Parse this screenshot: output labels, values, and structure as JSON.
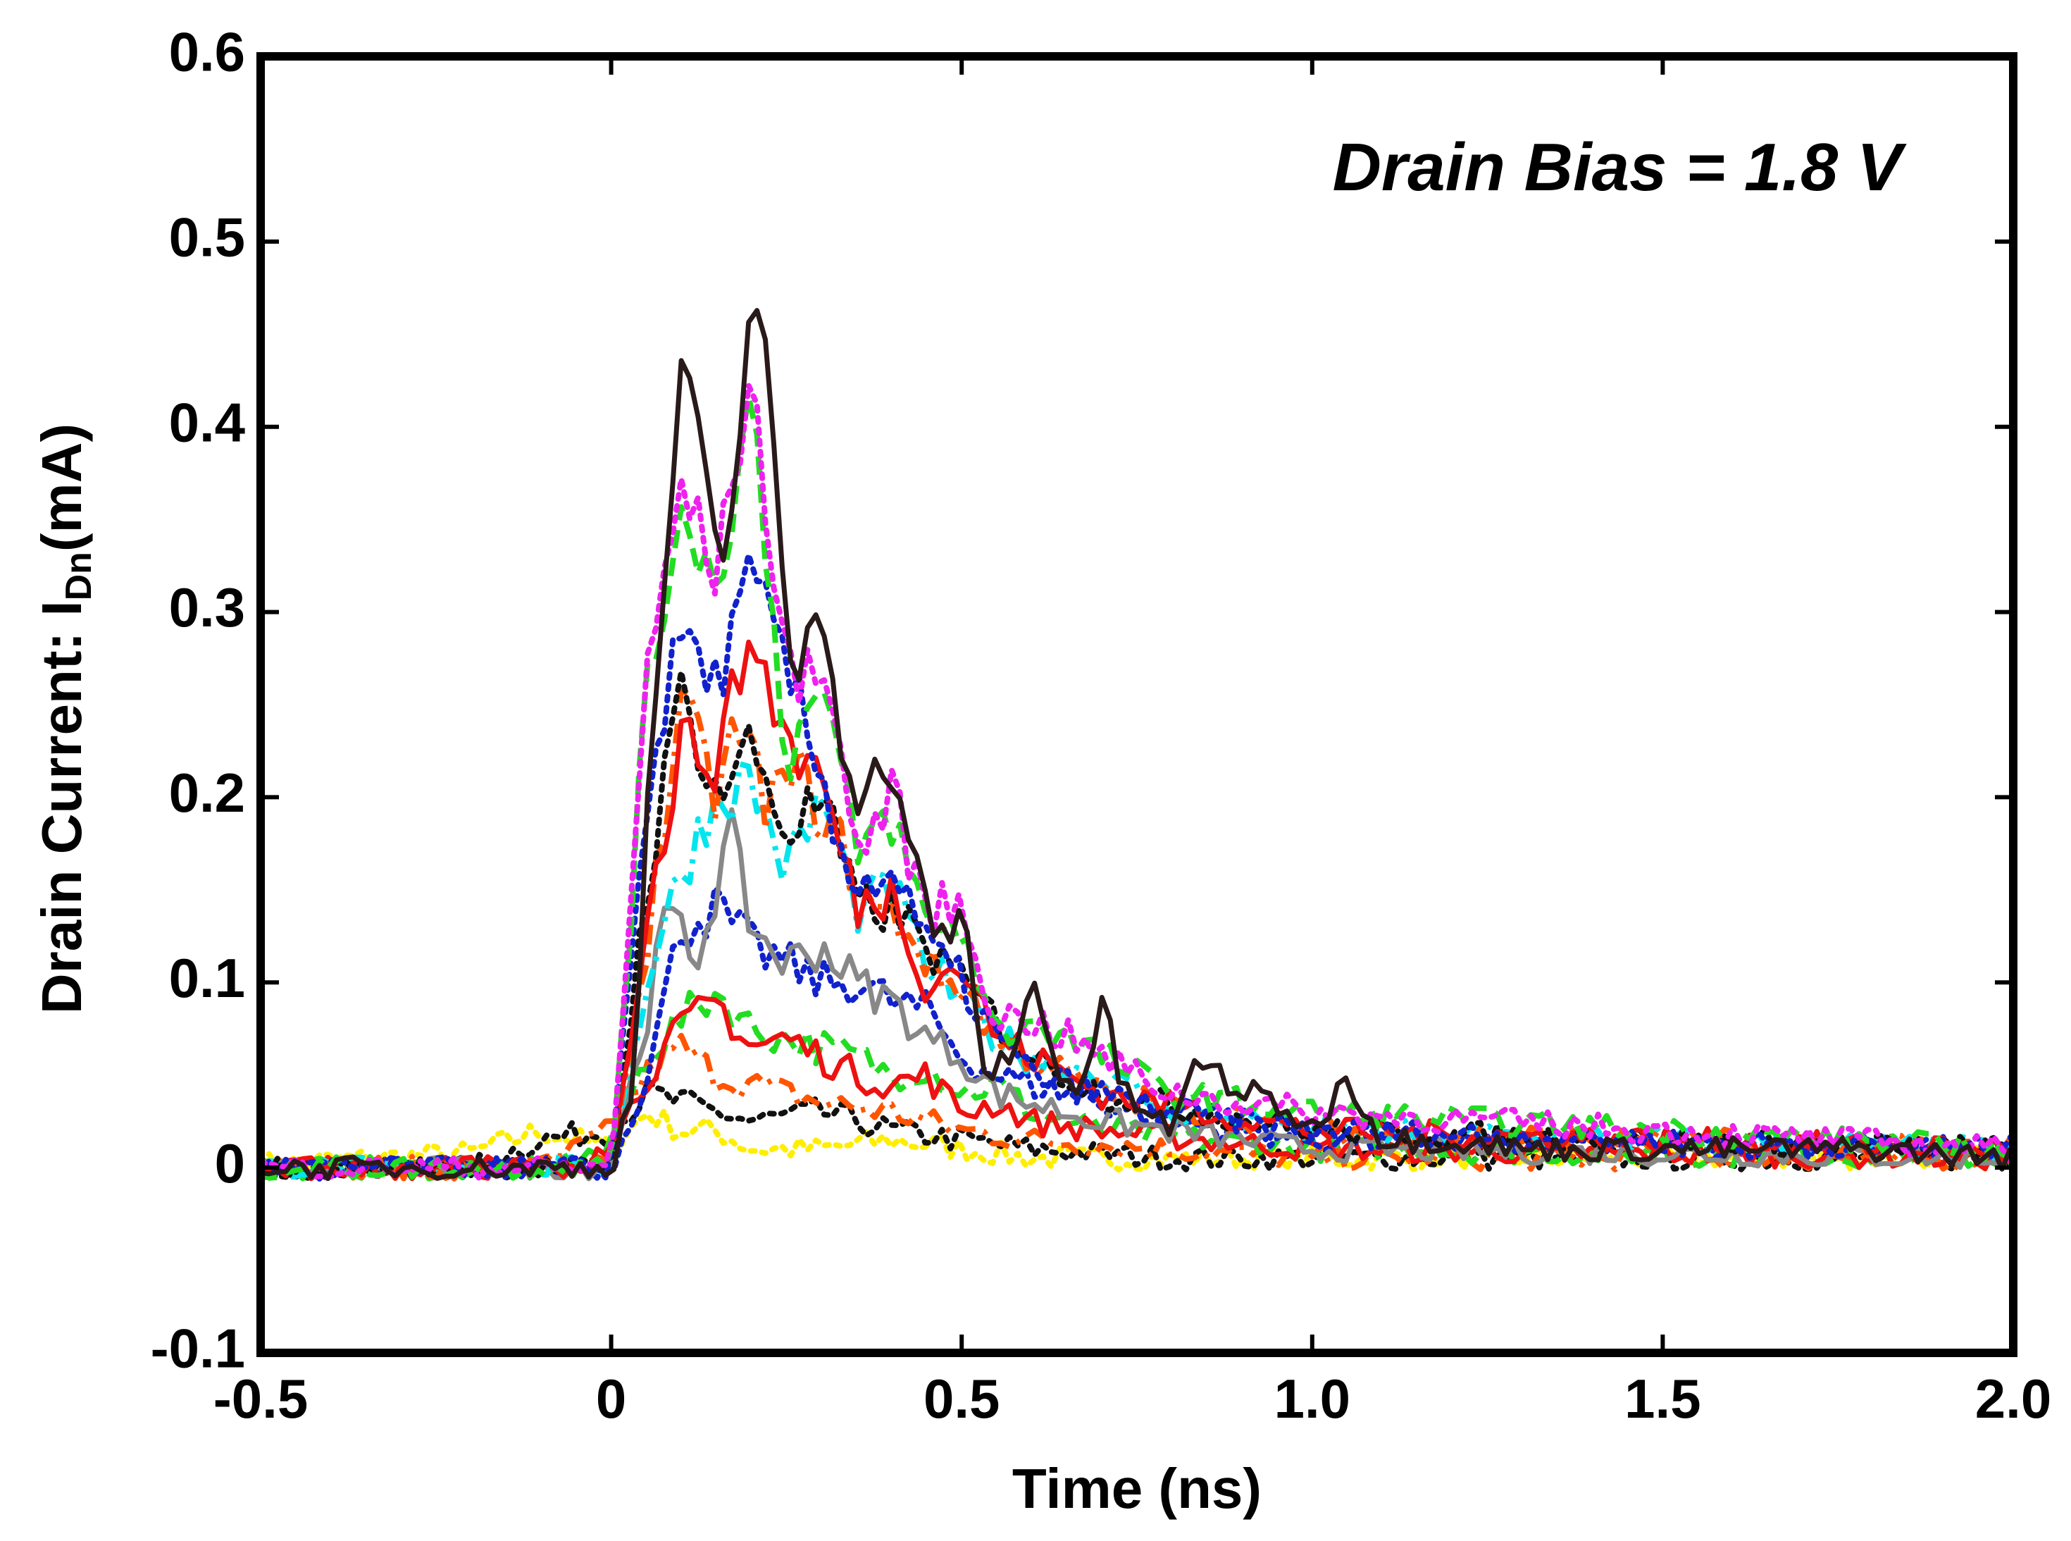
{
  "chart_data": {
    "type": "line",
    "title": "",
    "xlabel": "Time (ns)",
    "ylabel": {
      "prefix": "Drain Current: I",
      "subscript": "Dn",
      "suffix": "(mA)"
    },
    "xlim": [
      -0.5,
      2.0
    ],
    "ylim": [
      -0.1,
      0.6
    ],
    "x_ticks": [
      -0.5,
      0,
      0.5,
      1.0,
      1.5,
      2.0
    ],
    "x_tick_labels": [
      "-0.5",
      "0",
      "0.5",
      "1.0",
      "1.5",
      "2.0"
    ],
    "y_ticks": [
      -0.1,
      0,
      0.1,
      0.2,
      0.3,
      0.4,
      0.5,
      0.6
    ],
    "y_tick_labels": [
      "-0.1",
      "0",
      "0.1",
      "0.2",
      "0.3",
      "0.4",
      "0.5",
      "0.6"
    ],
    "grid": false,
    "legend": "none",
    "annotation": "Drain Bias = 1.8 V",
    "series": [
      {
        "name": "trace-yellow-dotted",
        "color": "#ffee00",
        "dash": "dotted",
        "points": [
          [
            -0.5,
            0.002
          ],
          [
            -0.2,
            0.008
          ],
          [
            -0.1,
            0.02
          ],
          [
            0.0,
            0.01
          ],
          [
            0.05,
            0.03
          ],
          [
            0.1,
            0.02
          ],
          [
            0.15,
            0.02
          ],
          [
            0.2,
            0.01
          ],
          [
            0.3,
            0.01
          ],
          [
            0.4,
            0.015
          ],
          [
            0.5,
            0.01
          ],
          [
            0.6,
            0.005
          ],
          [
            1.0,
            0.005
          ],
          [
            2.0,
            0.005
          ]
        ]
      },
      {
        "name": "trace-black-dotted",
        "color": "#111111",
        "dash": "dotted",
        "points": [
          [
            -0.5,
            0.0
          ],
          [
            -0.2,
            0.0
          ],
          [
            -0.1,
            0.015
          ],
          [
            0.0,
            0.02
          ],
          [
            0.05,
            0.04
          ],
          [
            0.1,
            0.035
          ],
          [
            0.15,
            0.03
          ],
          [
            0.2,
            0.025
          ],
          [
            0.3,
            0.03
          ],
          [
            0.4,
            0.02
          ],
          [
            0.5,
            0.015
          ],
          [
            0.6,
            0.01
          ],
          [
            0.8,
            0.005
          ],
          [
            1.0,
            0.005
          ],
          [
            2.0,
            0.005
          ]
        ]
      },
      {
        "name": "trace-orange-dashdot-low",
        "color": "#ff5500",
        "dash": "dashdot",
        "points": [
          [
            -0.5,
            0.0
          ],
          [
            -0.1,
            0.0
          ],
          [
            0.0,
            0.02
          ],
          [
            0.05,
            0.05
          ],
          [
            0.1,
            0.065
          ],
          [
            0.15,
            0.05
          ],
          [
            0.2,
            0.045
          ],
          [
            0.3,
            0.035
          ],
          [
            0.4,
            0.03
          ],
          [
            0.5,
            0.02
          ],
          [
            0.6,
            0.015
          ],
          [
            0.8,
            0.01
          ],
          [
            1.0,
            0.005
          ],
          [
            2.0,
            0.005
          ]
        ]
      },
      {
        "name": "trace-green-dashed-low",
        "color": "#22dd22",
        "dash": "dashed",
        "points": [
          [
            -0.5,
            0.0
          ],
          [
            -0.1,
            0.0
          ],
          [
            0.0,
            0.01
          ],
          [
            0.05,
            0.06
          ],
          [
            0.1,
            0.08
          ],
          [
            0.15,
            0.095
          ],
          [
            0.2,
            0.075
          ],
          [
            0.25,
            0.07
          ],
          [
            0.3,
            0.065
          ],
          [
            0.35,
            0.06
          ],
          [
            0.4,
            0.05
          ],
          [
            0.45,
            0.055
          ],
          [
            0.5,
            0.04
          ],
          [
            0.55,
            0.045
          ],
          [
            0.6,
            0.03
          ],
          [
            0.7,
            0.02
          ],
          [
            1.0,
            0.01
          ],
          [
            2.0,
            0.005
          ]
        ]
      },
      {
        "name": "trace-red-solid-low",
        "color": "#ee1111",
        "dash": "solid",
        "points": [
          [
            -0.5,
            0.0
          ],
          [
            -0.05,
            0.0
          ],
          [
            0.0,
            0.01
          ],
          [
            0.05,
            0.05
          ],
          [
            0.1,
            0.075
          ],
          [
            0.15,
            0.09
          ],
          [
            0.2,
            0.065
          ],
          [
            0.25,
            0.07
          ],
          [
            0.3,
            0.06
          ],
          [
            0.35,
            0.05
          ],
          [
            0.4,
            0.045
          ],
          [
            0.45,
            0.05
          ],
          [
            0.5,
            0.03
          ],
          [
            0.55,
            0.035
          ],
          [
            0.6,
            0.025
          ],
          [
            0.7,
            0.02
          ],
          [
            1.0,
            0.01
          ],
          [
            2.0,
            0.005
          ]
        ]
      },
      {
        "name": "trace-blue-dotted-low",
        "color": "#1122cc",
        "dash": "dotted",
        "points": [
          [
            -0.5,
            0.0
          ],
          [
            0.0,
            0.0
          ],
          [
            0.05,
            0.05
          ],
          [
            0.1,
            0.13
          ],
          [
            0.15,
            0.14
          ],
          [
            0.2,
            0.12
          ],
          [
            0.25,
            0.11
          ],
          [
            0.3,
            0.1
          ],
          [
            0.35,
            0.1
          ],
          [
            0.4,
            0.09
          ],
          [
            0.45,
            0.085
          ],
          [
            0.5,
            0.06
          ],
          [
            0.55,
            0.05
          ],
          [
            0.6,
            0.045
          ],
          [
            0.7,
            0.035
          ],
          [
            0.8,
            0.025
          ],
          [
            1.0,
            0.015
          ],
          [
            2.0,
            0.01
          ]
        ]
      },
      {
        "name": "trace-gray-solid",
        "color": "#888888",
        "dash": "solid",
        "points": [
          [
            -0.5,
            0.0
          ],
          [
            0.0,
            0.0
          ],
          [
            0.05,
            0.08
          ],
          [
            0.08,
            0.14
          ],
          [
            0.12,
            0.11
          ],
          [
            0.17,
            0.18
          ],
          [
            0.2,
            0.13
          ],
          [
            0.25,
            0.11
          ],
          [
            0.3,
            0.12
          ],
          [
            0.35,
            0.1
          ],
          [
            0.4,
            0.09
          ],
          [
            0.45,
            0.07
          ],
          [
            0.5,
            0.06
          ],
          [
            0.55,
            0.04
          ],
          [
            0.6,
            0.035
          ],
          [
            0.7,
            0.025
          ],
          [
            0.8,
            0.02
          ],
          [
            1.0,
            0.01
          ],
          [
            2.0,
            0.005
          ]
        ]
      },
      {
        "name": "trace-cyan-dashdot",
        "color": "#00e5ee",
        "dash": "dashdot",
        "points": [
          [
            -0.5,
            0.0
          ],
          [
            0.0,
            0.0
          ],
          [
            0.05,
            0.1
          ],
          [
            0.1,
            0.16
          ],
          [
            0.15,
            0.2
          ],
          [
            0.2,
            0.21
          ],
          [
            0.25,
            0.16
          ],
          [
            0.3,
            0.2
          ],
          [
            0.35,
            0.14
          ],
          [
            0.4,
            0.15
          ],
          [
            0.45,
            0.11
          ],
          [
            0.5,
            0.09
          ],
          [
            0.55,
            0.07
          ],
          [
            0.6,
            0.06
          ],
          [
            0.7,
            0.05
          ],
          [
            0.8,
            0.03
          ],
          [
            1.0,
            0.02
          ],
          [
            2.0,
            0.01
          ]
        ]
      },
      {
        "name": "trace-orange-dashdot-mid",
        "color": "#ff5500",
        "dash": "dashdot",
        "points": [
          [
            -0.5,
            0.0
          ],
          [
            0.0,
            0.0
          ],
          [
            0.05,
            0.12
          ],
          [
            0.1,
            0.25
          ],
          [
            0.15,
            0.2
          ],
          [
            0.18,
            0.24
          ],
          [
            0.22,
            0.2
          ],
          [
            0.27,
            0.21
          ],
          [
            0.32,
            0.18
          ],
          [
            0.37,
            0.14
          ],
          [
            0.42,
            0.13
          ],
          [
            0.47,
            0.1
          ],
          [
            0.5,
            0.1
          ],
          [
            0.55,
            0.07
          ],
          [
            0.6,
            0.06
          ],
          [
            0.7,
            0.04
          ],
          [
            1.0,
            0.02
          ],
          [
            2.0,
            0.01
          ]
        ]
      },
      {
        "name": "trace-black-dotted-mid",
        "color": "#111111",
        "dash": "dotted",
        "points": [
          [
            -0.5,
            0.0
          ],
          [
            0.0,
            0.0
          ],
          [
            0.05,
            0.15
          ],
          [
            0.1,
            0.26
          ],
          [
            0.15,
            0.2
          ],
          [
            0.2,
            0.23
          ],
          [
            0.25,
            0.18
          ],
          [
            0.3,
            0.2
          ],
          [
            0.35,
            0.14
          ],
          [
            0.4,
            0.14
          ],
          [
            0.45,
            0.12
          ],
          [
            0.5,
            0.1
          ],
          [
            0.6,
            0.06
          ],
          [
            0.7,
            0.04
          ],
          [
            1.0,
            0.02
          ],
          [
            2.0,
            0.01
          ]
        ]
      },
      {
        "name": "trace-red-solid-mid",
        "color": "#ee1111",
        "dash": "solid",
        "points": [
          [
            -0.5,
            0.0
          ],
          [
            -0.05,
            0.0
          ],
          [
            0.0,
            0.01
          ],
          [
            0.05,
            0.13
          ],
          [
            0.1,
            0.23
          ],
          [
            0.15,
            0.22
          ],
          [
            0.2,
            0.29
          ],
          [
            0.25,
            0.23
          ],
          [
            0.3,
            0.21
          ],
          [
            0.35,
            0.14
          ],
          [
            0.4,
            0.15
          ],
          [
            0.45,
            0.1
          ],
          [
            0.5,
            0.11
          ],
          [
            0.55,
            0.07
          ],
          [
            0.6,
            0.06
          ],
          [
            0.7,
            0.04
          ],
          [
            1.0,
            0.02
          ],
          [
            2.0,
            0.01
          ]
        ]
      },
      {
        "name": "trace-blue-dotted-high",
        "color": "#1122cc",
        "dash": "dotted",
        "points": [
          [
            -0.5,
            0.0
          ],
          [
            0.0,
            0.0
          ],
          [
            0.05,
            0.2
          ],
          [
            0.1,
            0.29
          ],
          [
            0.15,
            0.26
          ],
          [
            0.2,
            0.32
          ],
          [
            0.25,
            0.27
          ],
          [
            0.3,
            0.21
          ],
          [
            0.35,
            0.15
          ],
          [
            0.4,
            0.16
          ],
          [
            0.45,
            0.12
          ],
          [
            0.5,
            0.1
          ],
          [
            0.55,
            0.07
          ],
          [
            0.6,
            0.05
          ],
          [
            0.7,
            0.04
          ],
          [
            0.8,
            0.03
          ],
          [
            1.0,
            0.02
          ],
          [
            2.0,
            0.01
          ]
        ]
      },
      {
        "name": "trace-green-dashed-high",
        "color": "#22dd22",
        "dash": "dashed",
        "points": [
          [
            -0.5,
            0.0
          ],
          [
            0.0,
            0.0
          ],
          [
            0.05,
            0.25
          ],
          [
            0.1,
            0.36
          ],
          [
            0.15,
            0.31
          ],
          [
            0.2,
            0.42
          ],
          [
            0.25,
            0.22
          ],
          [
            0.3,
            0.26
          ],
          [
            0.35,
            0.17
          ],
          [
            0.4,
            0.19
          ],
          [
            0.45,
            0.13
          ],
          [
            0.5,
            0.13
          ],
          [
            0.55,
            0.07
          ],
          [
            0.6,
            0.08
          ],
          [
            0.7,
            0.06
          ],
          [
            0.8,
            0.04
          ],
          [
            1.0,
            0.03
          ],
          [
            2.0,
            0.01
          ]
        ]
      },
      {
        "name": "trace-magenta-dotted",
        "color": "#ee22ee",
        "dash": "dotted",
        "points": [
          [
            -0.5,
            0.0
          ],
          [
            0.0,
            0.0
          ],
          [
            0.05,
            0.26
          ],
          [
            0.1,
            0.37
          ],
          [
            0.15,
            0.32
          ],
          [
            0.2,
            0.43
          ],
          [
            0.25,
            0.26
          ],
          [
            0.3,
            0.28
          ],
          [
            0.35,
            0.17
          ],
          [
            0.4,
            0.2
          ],
          [
            0.45,
            0.14
          ],
          [
            0.5,
            0.14
          ],
          [
            0.55,
            0.08
          ],
          [
            0.6,
            0.08
          ],
          [
            0.7,
            0.06
          ],
          [
            0.8,
            0.04
          ],
          [
            1.0,
            0.03
          ],
          [
            2.0,
            0.01
          ]
        ]
      },
      {
        "name": "trace-black-solid",
        "color": "#2a1a1a",
        "dash": "solid",
        "points": [
          [
            -0.5,
            0.0
          ],
          [
            -0.2,
            0.0
          ],
          [
            0.0,
            0.0
          ],
          [
            0.03,
            0.04
          ],
          [
            0.06,
            0.24
          ],
          [
            0.1,
            0.43
          ],
          [
            0.12,
            0.4
          ],
          [
            0.15,
            0.33
          ],
          [
            0.17,
            0.34
          ],
          [
            0.2,
            0.48
          ],
          [
            0.22,
            0.44
          ],
          [
            0.25,
            0.28
          ],
          [
            0.27,
            0.27
          ],
          [
            0.3,
            0.31
          ],
          [
            0.33,
            0.23
          ],
          [
            0.36,
            0.2
          ],
          [
            0.4,
            0.22
          ],
          [
            0.43,
            0.17
          ],
          [
            0.46,
            0.12
          ],
          [
            0.5,
            0.14
          ],
          [
            0.53,
            0.05
          ],
          [
            0.57,
            0.06
          ],
          [
            0.6,
            0.1
          ],
          [
            0.63,
            0.06
          ],
          [
            0.67,
            0.04
          ],
          [
            0.7,
            0.09
          ],
          [
            0.73,
            0.04
          ],
          [
            0.8,
            0.02
          ],
          [
            0.84,
            0.06
          ],
          [
            0.9,
            0.04
          ],
          [
            0.95,
            0.035
          ],
          [
            1.0,
            0.02
          ],
          [
            1.05,
            0.05
          ],
          [
            1.1,
            0.015
          ],
          [
            1.2,
            0.015
          ],
          [
            1.3,
            0.01
          ],
          [
            1.5,
            0.01
          ],
          [
            1.8,
            0.01
          ],
          [
            2.0,
            0.005
          ]
        ]
      }
    ]
  }
}
